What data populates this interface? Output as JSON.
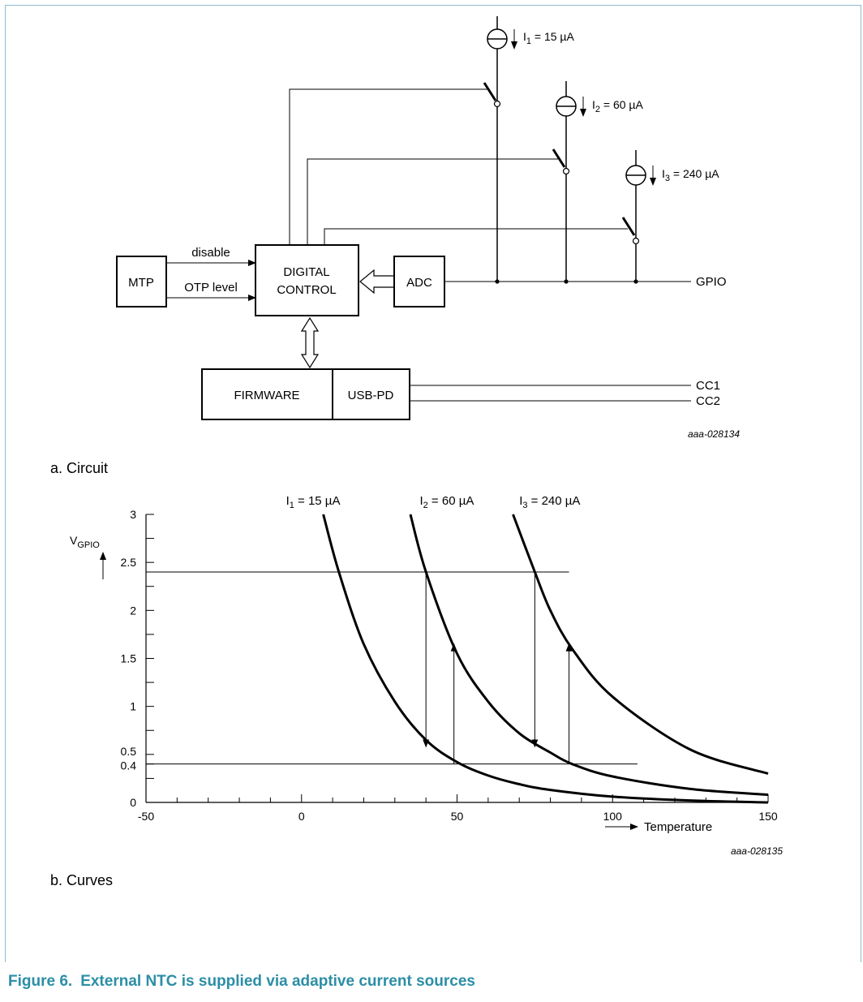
{
  "circuit": {
    "sources": [
      {
        "label": "I",
        "sub": "1",
        "value": " = 15 µA"
      },
      {
        "label": "I",
        "sub": "2",
        "value": " = 60 µA"
      },
      {
        "label": "I",
        "sub": "3",
        "value": " = 240 µA"
      }
    ],
    "blocks": {
      "mtp": "MTP",
      "digital_control": [
        "DIGITAL",
        "CONTROL"
      ],
      "adc": "ADC",
      "firmware": "FIRMWARE",
      "usbpd": "USB-PD"
    },
    "signals": {
      "disable": "disable",
      "otp_level": "OTP level",
      "gpio": "GPIO",
      "cc1": "CC1",
      "cc2": "CC2"
    },
    "code": "aaa-028134",
    "caption": "a. Circuit"
  },
  "curves": {
    "code": "aaa-028135",
    "caption": "b. Curves",
    "axis": {
      "ylabel": "V",
      "ylabel_sub": "GPIO",
      "xlabel": "Temperature",
      "xticks": [
        "-50",
        "0",
        "50",
        "100",
        "150"
      ],
      "yticks": [
        "0",
        "0.4",
        "0.5",
        "1",
        "1.5",
        "2",
        "2.5",
        "3"
      ]
    }
  },
  "chart_data": {
    "type": "line",
    "x_label": "Temperature",
    "y_label": "VGPIO",
    "xlim": [
      -50,
      150
    ],
    "ylim": [
      0,
      3
    ],
    "grid": false,
    "series": [
      {
        "name": "I1 = 15 µA",
        "x": [
          7,
          12,
          20,
          30,
          40,
          50,
          60,
          70,
          80,
          100,
          125,
          150
        ],
        "y": [
          3.0,
          2.4,
          1.65,
          1.05,
          0.65,
          0.42,
          0.28,
          0.19,
          0.13,
          0.06,
          0.02,
          0.0
        ]
      },
      {
        "name": "I2 = 60 µA",
        "x": [
          35,
          40,
          50,
          60,
          70,
          80,
          87,
          100,
          125,
          150
        ],
        "y": [
          3.0,
          2.4,
          1.55,
          1.05,
          0.72,
          0.52,
          0.4,
          0.27,
          0.14,
          0.08
        ]
      },
      {
        "name": "I3 = 240 µA",
        "x": [
          68,
          75,
          80,
          87,
          100,
          125,
          150
        ],
        "y": [
          3.0,
          2.4,
          2.0,
          1.6,
          1.1,
          0.55,
          0.3
        ]
      }
    ],
    "thresholds": [
      2.4,
      0.4
    ],
    "transitions_down": [
      40,
      75
    ],
    "transitions_up": [
      49,
      86
    ]
  },
  "figure": {
    "number": "Figure 6.",
    "title": "External NTC is supplied via adaptive current sources"
  }
}
